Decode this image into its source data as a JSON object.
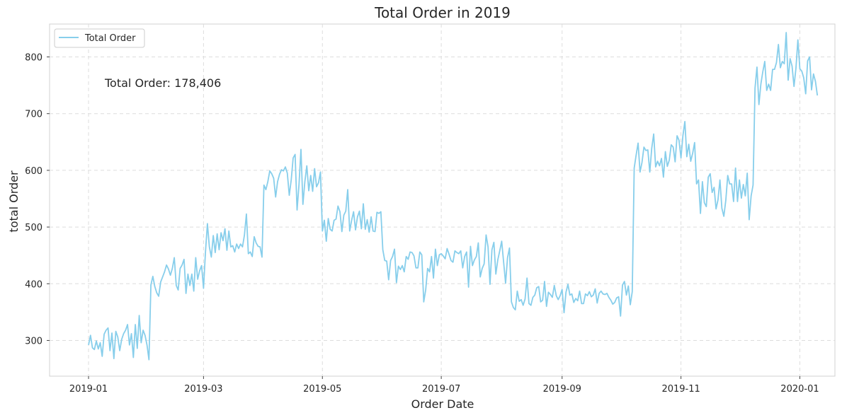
{
  "chart_data": {
    "type": "line",
    "title": "Total Order in 2019",
    "xlabel": "Order Date",
    "ylabel": "total Order",
    "annotation": "Total Order: 178,406",
    "legend": {
      "placement": "top-left",
      "label": "Total Order"
    },
    "grid": true,
    "line_color": "#87ceeb",
    "x_ticks": [
      "2019-01",
      "2019-03",
      "2019-05",
      "2019-07",
      "2019-09",
      "2019-11",
      "2020-01"
    ],
    "x_tick_dates": [
      "2019-01-01",
      "2019-03-01",
      "2019-05-01",
      "2019-07-01",
      "2019-09-01",
      "2019-11-01",
      "2020-01-01"
    ],
    "xlim": [
      "2018-12-12",
      "2020-01-19"
    ],
    "y_ticks": [
      300,
      400,
      500,
      600,
      700,
      800
    ],
    "ylim": [
      237,
      858
    ],
    "series": [
      {
        "x_start": "2019-01-01",
        "x_end": "2019-12-31",
        "x_step": "1 day",
        "values": [
          292,
          309,
          287,
          284,
          299,
          285,
          296,
          272,
          311,
          318,
          322,
          282,
          313,
          268,
          316,
          306,
          282,
          302,
          312,
          318,
          328,
          292,
          312,
          270,
          328,
          286,
          344,
          296,
          318,
          309,
          292,
          266,
          398,
          413,
          395,
          384,
          378,
          403,
          412,
          421,
          433,
          426,
          415,
          427,
          446,
          397,
          389,
          427,
          433,
          443,
          383,
          417,
          397,
          417,
          387,
          446,
          408,
          423,
          432,
          392,
          456,
          506,
          465,
          447,
          485,
          455,
          488,
          460,
          490,
          476,
          497,
          459,
          493,
          465,
          467,
          456,
          470,
          462,
          470,
          465,
          486,
          523,
          453,
          456,
          448,
          483,
          472,
          466,
          465,
          447,
          574,
          566,
          580,
          599,
          594,
          586,
          553,
          580,
          593,
          601,
          599,
          606,
          595,
          556,
          583,
          622,
          628,
          530,
          575,
          637,
          540,
          580,
          608,
          564,
          591,
          563,
          603,
          571,
          578,
          597,
          493,
          512,
          475,
          515,
          496,
          493,
          512,
          514,
          537,
          527,
          492,
          521,
          528,
          566,
          493,
          512,
          527,
          495,
          518,
          528,
          497,
          541,
          496,
          513,
          491,
          518,
          493,
          492,
          526,
          524,
          527,
          460,
          441,
          440,
          407,
          441,
          448,
          461,
          402,
          431,
          425,
          432,
          421,
          448,
          443,
          456,
          455,
          449,
          428,
          428,
          456,
          451,
          368,
          389,
          427,
          421,
          448,
          410,
          461,
          432,
          451,
          453,
          449,
          444,
          462,
          452,
          441,
          438,
          458,
          455,
          453,
          458,
          428,
          448,
          456,
          394,
          466,
          432,
          442,
          448,
          472,
          412,
          427,
          435,
          486,
          465,
          399,
          460,
          473,
          417,
          442,
          458,
          475,
          438,
          401,
          446,
          463,
          368,
          358,
          354,
          387,
          369,
          372,
          362,
          373,
          410,
          365,
          362,
          376,
          380,
          393,
          395,
          368,
          371,
          404,
          360,
          385,
          381,
          376,
          397,
          379,
          372,
          379,
          390,
          349,
          385,
          399,
          380,
          382,
          367,
          374,
          370,
          387,
          365,
          365,
          382,
          379,
          386,
          377,
          380,
          391,
          366,
          383,
          387,
          382,
          381,
          383,
          376,
          371,
          364,
          367,
          375,
          377,
          343,
          398,
          404,
          380,
          396,
          363,
          386,
          604,
          627,
          648,
          597,
          614,
          641,
          635,
          636,
          597,
          639,
          664,
          606,
          616,
          608,
          621,
          588,
          633,
          607,
          618,
          645,
          641,
          615,
          661,
          653,
          622,
          661,
          686,
          624,
          646,
          616,
          630,
          649,
          576,
          583,
          524,
          580,
          543,
          536,
          588,
          594,
          561,
          570,
          532,
          548,
          583,
          533,
          519,
          547,
          591,
          576,
          576,
          545,
          604,
          545,
          583,
          551,
          575,
          555,
          595,
          513,
          555,
          574,
          745,
          782,
          716,
          752,
          774,
          792,
          741,
          752,
          741,
          778,
          778,
          790,
          822,
          781,
          792,
          788,
          843,
          759,
          797,
          784,
          748,
          780,
          830,
          779,
          775,
          763,
          735,
          793,
          800,
          742,
          770,
          757,
          732
        ]
      }
    ]
  }
}
